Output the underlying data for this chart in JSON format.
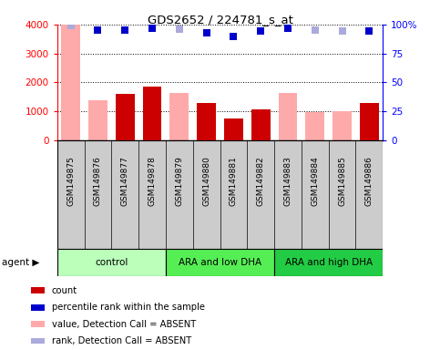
{
  "title": "GDS2652 / 224781_s_at",
  "samples": [
    "GSM149875",
    "GSM149876",
    "GSM149877",
    "GSM149878",
    "GSM149879",
    "GSM149880",
    "GSM149881",
    "GSM149882",
    "GSM149883",
    "GSM149884",
    "GSM149885",
    "GSM149886"
  ],
  "count_values": [
    0,
    0,
    1600,
    1850,
    0,
    1270,
    750,
    1060,
    0,
    0,
    0,
    1270
  ],
  "value_absent": [
    4000,
    1380,
    0,
    0,
    1620,
    0,
    0,
    0,
    1620,
    960,
    990,
    0
  ],
  "percentile_rank": [
    99,
    95,
    95,
    97,
    96,
    93,
    90,
    94,
    97,
    95,
    94,
    94
  ],
  "is_absent_rank": [
    true,
    false,
    false,
    false,
    true,
    false,
    false,
    false,
    false,
    true,
    true,
    false
  ],
  "groups": [
    {
      "label": "control",
      "start": 0,
      "end": 4,
      "color": "#bbffbb"
    },
    {
      "label": "ARA and low DHA",
      "start": 4,
      "end": 8,
      "color": "#55ee55"
    },
    {
      "label": "ARA and high DHA",
      "start": 8,
      "end": 12,
      "color": "#22cc44"
    }
  ],
  "ylim_left": [
    0,
    4000
  ],
  "ylim_right": [
    0,
    100
  ],
  "yticks_left": [
    0,
    1000,
    2000,
    3000,
    4000
  ],
  "yticks_right": [
    0,
    25,
    50,
    75,
    100
  ],
  "ytick_labels_left": [
    "0",
    "1000",
    "2000",
    "3000",
    "4000"
  ],
  "ytick_labels_right": [
    "0",
    "25",
    "50",
    "75",
    "100%"
  ],
  "color_count": "#cc0000",
  "color_value_absent": "#ffaaaa",
  "color_rank": "#0000cc",
  "color_rank_absent": "#aaaadd",
  "tick_area_color": "#cccccc",
  "legend_items": [
    {
      "color": "#cc0000",
      "label": "count"
    },
    {
      "color": "#0000cc",
      "label": "percentile rank within the sample"
    },
    {
      "color": "#ffaaaa",
      "label": "value, Detection Call = ABSENT"
    },
    {
      "color": "#aaaadd",
      "label": "rank, Detection Call = ABSENT"
    }
  ]
}
